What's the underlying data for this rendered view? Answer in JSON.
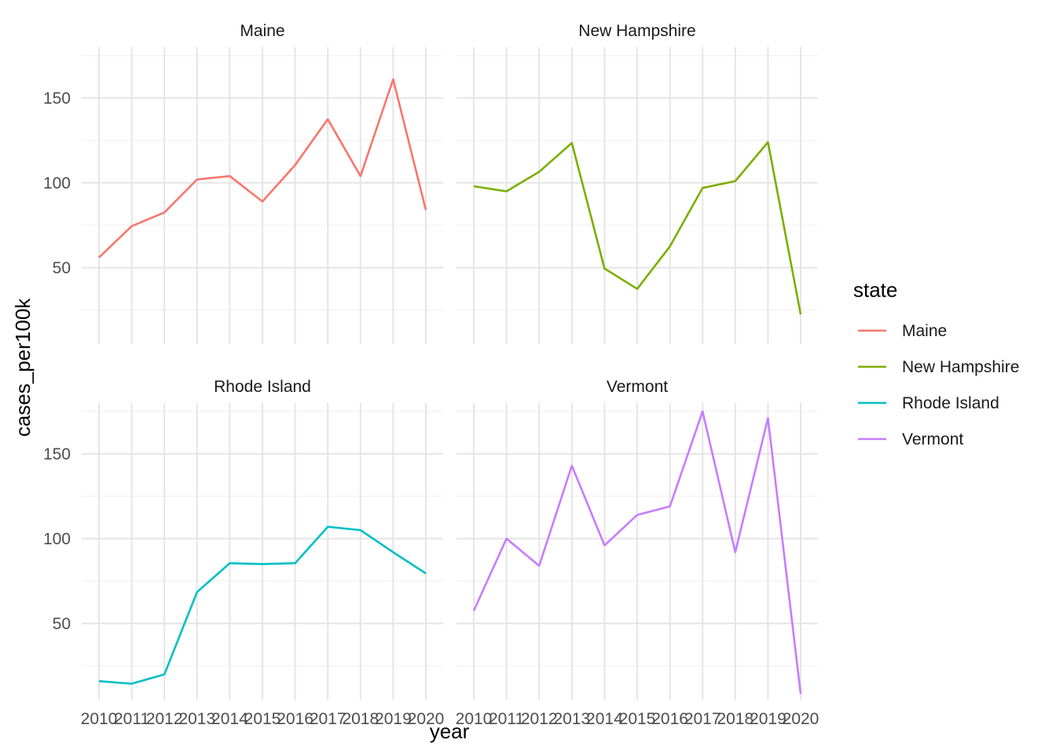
{
  "chart_data": {
    "type": "line",
    "xlabel": "year",
    "ylabel": "cases_per100k",
    "x": [
      2010,
      2011,
      2012,
      2013,
      2014,
      2015,
      2016,
      2017,
      2018,
      2019,
      2020
    ],
    "x_tick_labels": [
      "2010",
      "2011",
      "2012",
      "2013",
      "2014",
      "2015",
      "2016",
      "2017",
      "2018",
      "2019",
      "2020"
    ],
    "y_ticks": [
      50,
      100,
      150
    ],
    "ylim": [
      5,
      180
    ],
    "grid": true,
    "legend_title": "state",
    "legend_position": "right",
    "facets": [
      {
        "name": "Maine",
        "color": "#F8766D",
        "values": [
          56,
          74.5,
          82.5,
          102,
          104,
          89,
          110.5,
          137.5,
          104,
          161,
          84
        ]
      },
      {
        "name": "New Hampshire",
        "color": "#7CAE00",
        "values": [
          98,
          95,
          106.5,
          123.5,
          49.5,
          37.5,
          62.5,
          97,
          101,
          124,
          22.5
        ]
      },
      {
        "name": "Rhode Island",
        "color": "#00BFC4",
        "values": [
          16,
          14.5,
          20,
          68.5,
          85.5,
          85,
          85.5,
          107,
          105,
          92,
          79.5
        ]
      },
      {
        "name": "Vermont",
        "color": "#C77CFF",
        "values": [
          57.5,
          100,
          84,
          143,
          96,
          114,
          119,
          175,
          92,
          171,
          8.5
        ]
      }
    ]
  }
}
